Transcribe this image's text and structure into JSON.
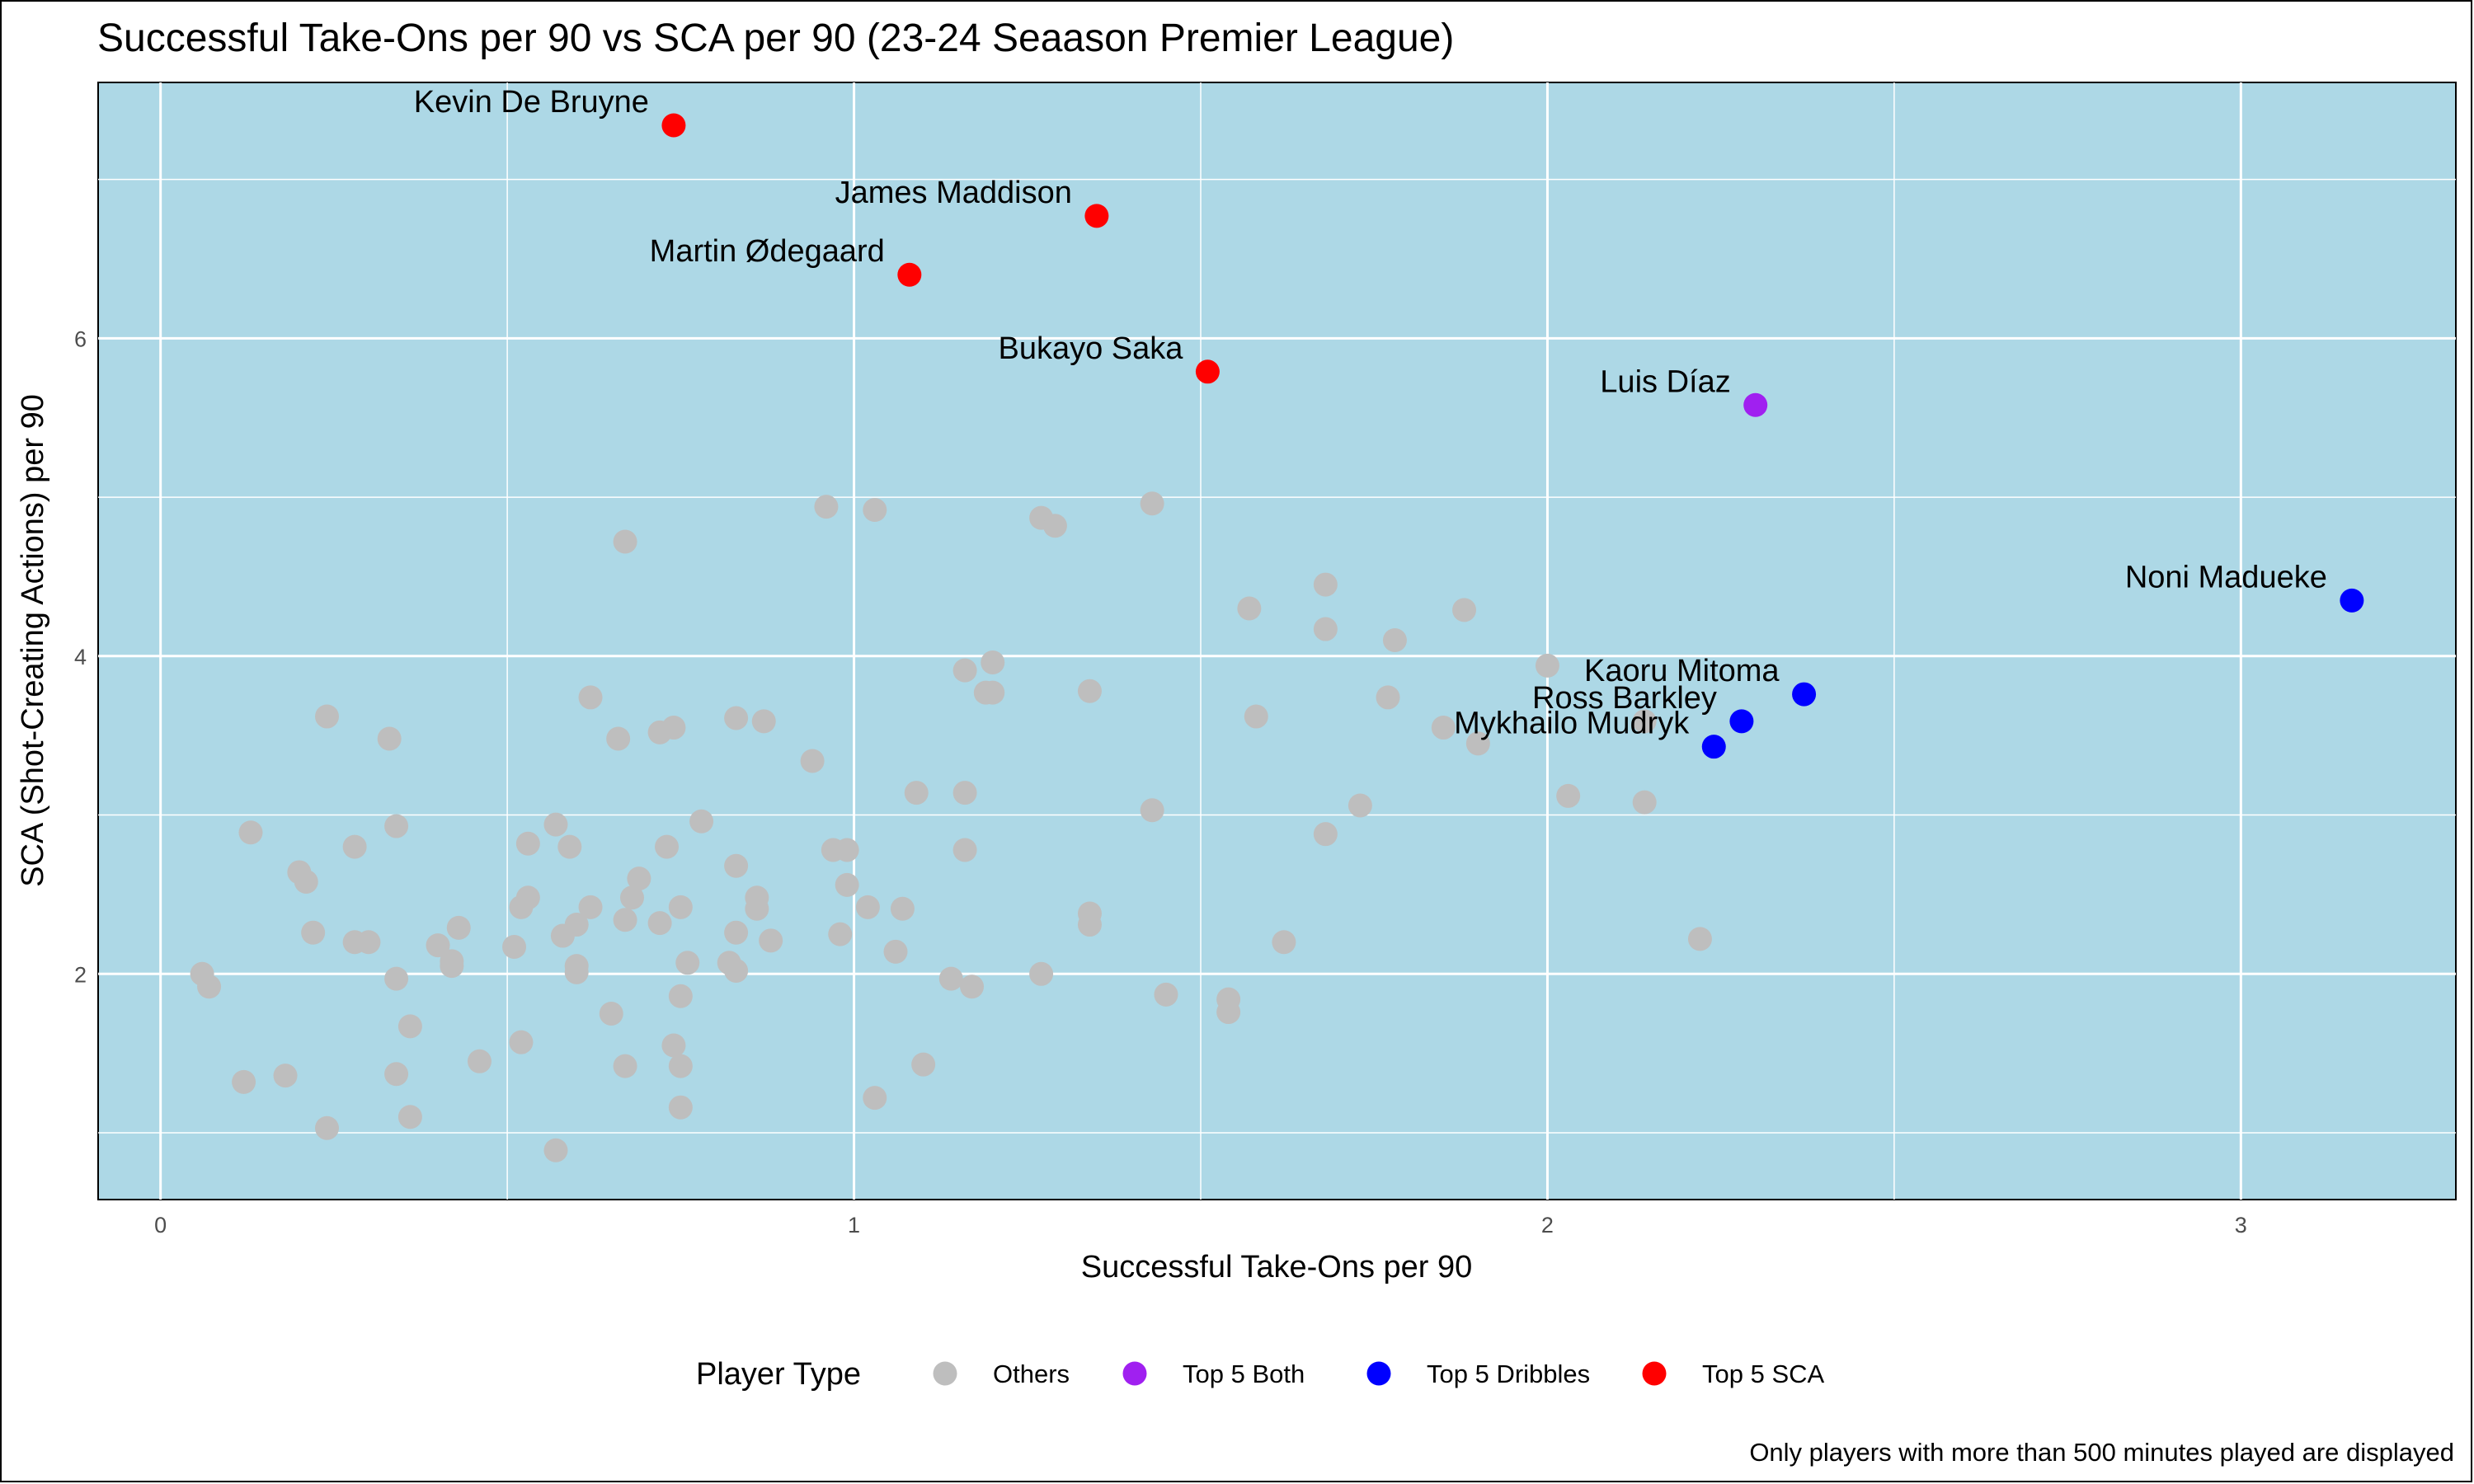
{
  "chart_data": {
    "type": "scatter",
    "title": "Successful Take-Ons per 90 vs SCA per 90 (23-24 Seaason Premier League)",
    "xlabel": "Successful Take-Ons per 90",
    "ylabel": "SCA (Shot-Creating Actions) per 90",
    "xlim": [
      -0.09,
      3.31
    ],
    "ylim": [
      0.58,
      7.61
    ],
    "xticks": [
      0,
      1,
      2,
      3
    ],
    "yticks": [
      2,
      4,
      6
    ],
    "grid": true,
    "legend": {
      "title": "Player Type",
      "position": "bottom",
      "entries": [
        {
          "name": "Others",
          "color": "#bebebe"
        },
        {
          "name": "Top 5 Both",
          "color": "#a020f0"
        },
        {
          "name": "Top 5 Dribbles",
          "color": "#0000ff"
        },
        {
          "name": "Top 5 SCA",
          "color": "#ff0000"
        }
      ]
    },
    "caption": "Only players with more than 500 minutes played are displayed",
    "series": [
      {
        "name": "Top 5 SCA",
        "color": "#ff0000",
        "points": [
          {
            "x": 0.74,
            "y": 7.34,
            "label": "Kevin De Bruyne"
          },
          {
            "x": 1.35,
            "y": 6.77,
            "label": "James Maddison"
          },
          {
            "x": 1.08,
            "y": 6.4,
            "label": "Martin Ødegaard"
          },
          {
            "x": 1.51,
            "y": 5.79,
            "label": "Bukayo Saka"
          }
        ]
      },
      {
        "name": "Top 5 Both",
        "color": "#a020f0",
        "points": [
          {
            "x": 2.3,
            "y": 5.58,
            "label": "Luis Díaz"
          }
        ]
      },
      {
        "name": "Top 5 Dribbles",
        "color": "#0000ff",
        "points": [
          {
            "x": 3.16,
            "y": 4.35,
            "label": "Noni Madueke"
          },
          {
            "x": 2.37,
            "y": 3.76,
            "label": "Kaoru Mitoma"
          },
          {
            "x": 2.28,
            "y": 3.59,
            "label": "Ross Barkley"
          },
          {
            "x": 2.24,
            "y": 3.43,
            "label": "Mykhailo Mudryk"
          }
        ]
      },
      {
        "name": "Others",
        "color": "#bebebe",
        "points": [
          {
            "x": 0.96,
            "y": 4.94
          },
          {
            "x": 1.03,
            "y": 4.92
          },
          {
            "x": 1.27,
            "y": 4.87
          },
          {
            "x": 1.29,
            "y": 4.82
          },
          {
            "x": 1.43,
            "y": 4.96
          },
          {
            "x": 0.67,
            "y": 4.72
          },
          {
            "x": 1.57,
            "y": 4.3
          },
          {
            "x": 1.68,
            "y": 4.45
          },
          {
            "x": 1.88,
            "y": 4.29
          },
          {
            "x": 1.68,
            "y": 4.17
          },
          {
            "x": 1.78,
            "y": 4.1
          },
          {
            "x": 1.2,
            "y": 3.96
          },
          {
            "x": 1.16,
            "y": 3.91
          },
          {
            "x": 1.19,
            "y": 3.77
          },
          {
            "x": 1.2,
            "y": 3.77
          },
          {
            "x": 1.34,
            "y": 3.78
          },
          {
            "x": 2.0,
            "y": 3.94
          },
          {
            "x": 1.77,
            "y": 3.74
          },
          {
            "x": 1.58,
            "y": 3.62
          },
          {
            "x": 1.85,
            "y": 3.55
          },
          {
            "x": 1.9,
            "y": 3.45
          },
          {
            "x": 2.14,
            "y": 3.59
          },
          {
            "x": 0.24,
            "y": 3.62
          },
          {
            "x": 0.33,
            "y": 3.48
          },
          {
            "x": 0.62,
            "y": 3.74
          },
          {
            "x": 0.66,
            "y": 3.48
          },
          {
            "x": 0.72,
            "y": 3.52
          },
          {
            "x": 0.74,
            "y": 3.55
          },
          {
            "x": 0.83,
            "y": 3.61
          },
          {
            "x": 0.87,
            "y": 3.59
          },
          {
            "x": 0.94,
            "y": 3.34
          },
          {
            "x": 1.09,
            "y": 3.14
          },
          {
            "x": 1.16,
            "y": 3.14
          },
          {
            "x": 1.43,
            "y": 3.03
          },
          {
            "x": 1.73,
            "y": 3.06
          },
          {
            "x": 2.03,
            "y": 3.12
          },
          {
            "x": 2.14,
            "y": 3.08
          },
          {
            "x": 1.68,
            "y": 2.88
          },
          {
            "x": 1.16,
            "y": 2.78
          },
          {
            "x": 0.13,
            "y": 2.89
          },
          {
            "x": 0.34,
            "y": 2.93
          },
          {
            "x": 0.57,
            "y": 2.94
          },
          {
            "x": 0.78,
            "y": 2.96
          },
          {
            "x": 0.53,
            "y": 2.82
          },
          {
            "x": 0.59,
            "y": 2.8
          },
          {
            "x": 0.73,
            "y": 2.8
          },
          {
            "x": 0.28,
            "y": 2.8
          },
          {
            "x": 0.97,
            "y": 2.78
          },
          {
            "x": 0.99,
            "y": 2.78
          },
          {
            "x": 0.2,
            "y": 2.64
          },
          {
            "x": 0.21,
            "y": 2.58
          },
          {
            "x": 0.83,
            "y": 2.68
          },
          {
            "x": 0.99,
            "y": 2.56
          },
          {
            "x": 0.69,
            "y": 2.6
          },
          {
            "x": 0.68,
            "y": 2.48
          },
          {
            "x": 0.86,
            "y": 2.48
          },
          {
            "x": 0.53,
            "y": 2.48
          },
          {
            "x": 0.52,
            "y": 2.42
          },
          {
            "x": 0.62,
            "y": 2.42
          },
          {
            "x": 0.75,
            "y": 2.42
          },
          {
            "x": 0.86,
            "y": 2.41
          },
          {
            "x": 1.02,
            "y": 2.42
          },
          {
            "x": 1.07,
            "y": 2.41
          },
          {
            "x": 1.34,
            "y": 2.38
          },
          {
            "x": 1.34,
            "y": 2.31
          },
          {
            "x": 0.67,
            "y": 2.34
          },
          {
            "x": 0.72,
            "y": 2.32
          },
          {
            "x": 0.6,
            "y": 2.31
          },
          {
            "x": 0.43,
            "y": 2.29
          },
          {
            "x": 0.22,
            "y": 2.26
          },
          {
            "x": 0.58,
            "y": 2.24
          },
          {
            "x": 0.83,
            "y": 2.26
          },
          {
            "x": 0.88,
            "y": 2.21
          },
          {
            "x": 0.98,
            "y": 2.25
          },
          {
            "x": 0.28,
            "y": 2.2
          },
          {
            "x": 0.3,
            "y": 2.2
          },
          {
            "x": 0.4,
            "y": 2.18
          },
          {
            "x": 0.51,
            "y": 2.17
          },
          {
            "x": 1.06,
            "y": 2.14
          },
          {
            "x": 1.62,
            "y": 2.2
          },
          {
            "x": 2.22,
            "y": 2.22
          },
          {
            "x": 0.42,
            "y": 2.08
          },
          {
            "x": 0.42,
            "y": 2.05
          },
          {
            "x": 0.6,
            "y": 2.05
          },
          {
            "x": 0.6,
            "y": 2.01
          },
          {
            "x": 0.76,
            "y": 2.07
          },
          {
            "x": 0.82,
            "y": 2.07
          },
          {
            "x": 0.83,
            "y": 2.02
          },
          {
            "x": 0.34,
            "y": 1.97
          },
          {
            "x": 0.06,
            "y": 2.0
          },
          {
            "x": 0.07,
            "y": 1.92
          },
          {
            "x": 1.14,
            "y": 1.97
          },
          {
            "x": 1.17,
            "y": 1.92
          },
          {
            "x": 1.27,
            "y": 2.0
          },
          {
            "x": 0.75,
            "y": 1.86
          },
          {
            "x": 1.45,
            "y": 1.87
          },
          {
            "x": 1.54,
            "y": 1.84
          },
          {
            "x": 1.54,
            "y": 1.76
          },
          {
            "x": 0.65,
            "y": 1.75
          },
          {
            "x": 0.36,
            "y": 1.67
          },
          {
            "x": 0.52,
            "y": 1.57
          },
          {
            "x": 0.74,
            "y": 1.55
          },
          {
            "x": 0.46,
            "y": 1.45
          },
          {
            "x": 0.67,
            "y": 1.42
          },
          {
            "x": 0.75,
            "y": 1.42
          },
          {
            "x": 1.1,
            "y": 1.43
          },
          {
            "x": 0.34,
            "y": 1.37
          },
          {
            "x": 0.18,
            "y": 1.36
          },
          {
            "x": 0.12,
            "y": 1.32
          },
          {
            "x": 1.03,
            "y": 1.22
          },
          {
            "x": 0.75,
            "y": 1.16
          },
          {
            "x": 0.36,
            "y": 1.1
          },
          {
            "x": 0.24,
            "y": 1.03
          },
          {
            "x": 0.57,
            "y": 0.89
          }
        ]
      }
    ]
  }
}
